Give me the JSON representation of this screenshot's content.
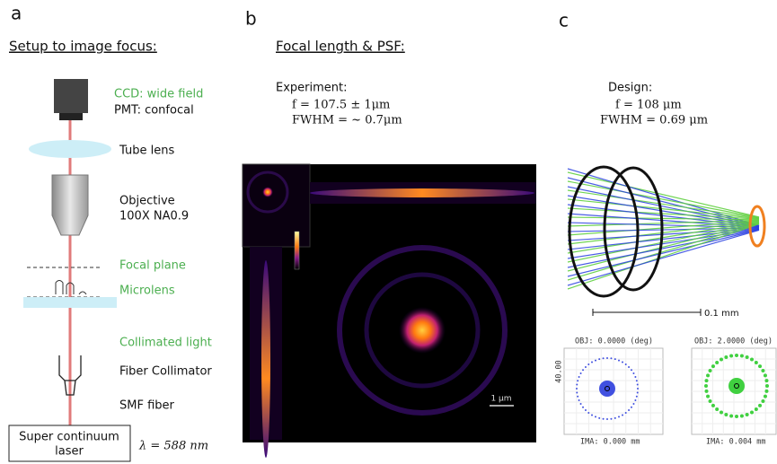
{
  "panel_a": {
    "label": "a",
    "title": "Setup to image focus:",
    "ccd": "CCD: wide field",
    "pmt": "PMT: confocal",
    "tube_lens": "Tube lens",
    "objective": [
      "Objective",
      "100X NA0.9"
    ],
    "focal_plane": "Focal plane",
    "microlens": "Microlens",
    "collimated_light": "Collimated light",
    "fiber_collimator": "Fiber Collimator",
    "smf_fiber": "SMF fiber",
    "laser": [
      "Super continuum",
      "laser"
    ],
    "wavelength": "λ = 588 nm"
  },
  "panel_b": {
    "label": "b",
    "title": "Focal length & PSF:",
    "heading": "Experiment:",
    "focal_length": "f = 107.5 ± 1μm",
    "fwhm": "FWHM = ~ 0.7μm",
    "scale_bar": "1 μm"
  },
  "panel_c": {
    "label": "c",
    "heading": "Design:",
    "focal_length": "f = 108 μm",
    "fwhm": "FWHM = 0.69 μm",
    "scale_bar": "0.1 mm",
    "spot_scale": "40.00",
    "spot_diagrams": [
      {
        "object": "OBJ: 0.0000 (deg)",
        "image": "IMA: 0.000 mm"
      },
      {
        "object": "OBJ: 2.0000 (deg)",
        "image": "IMA: 0.004 mm"
      }
    ]
  }
}
